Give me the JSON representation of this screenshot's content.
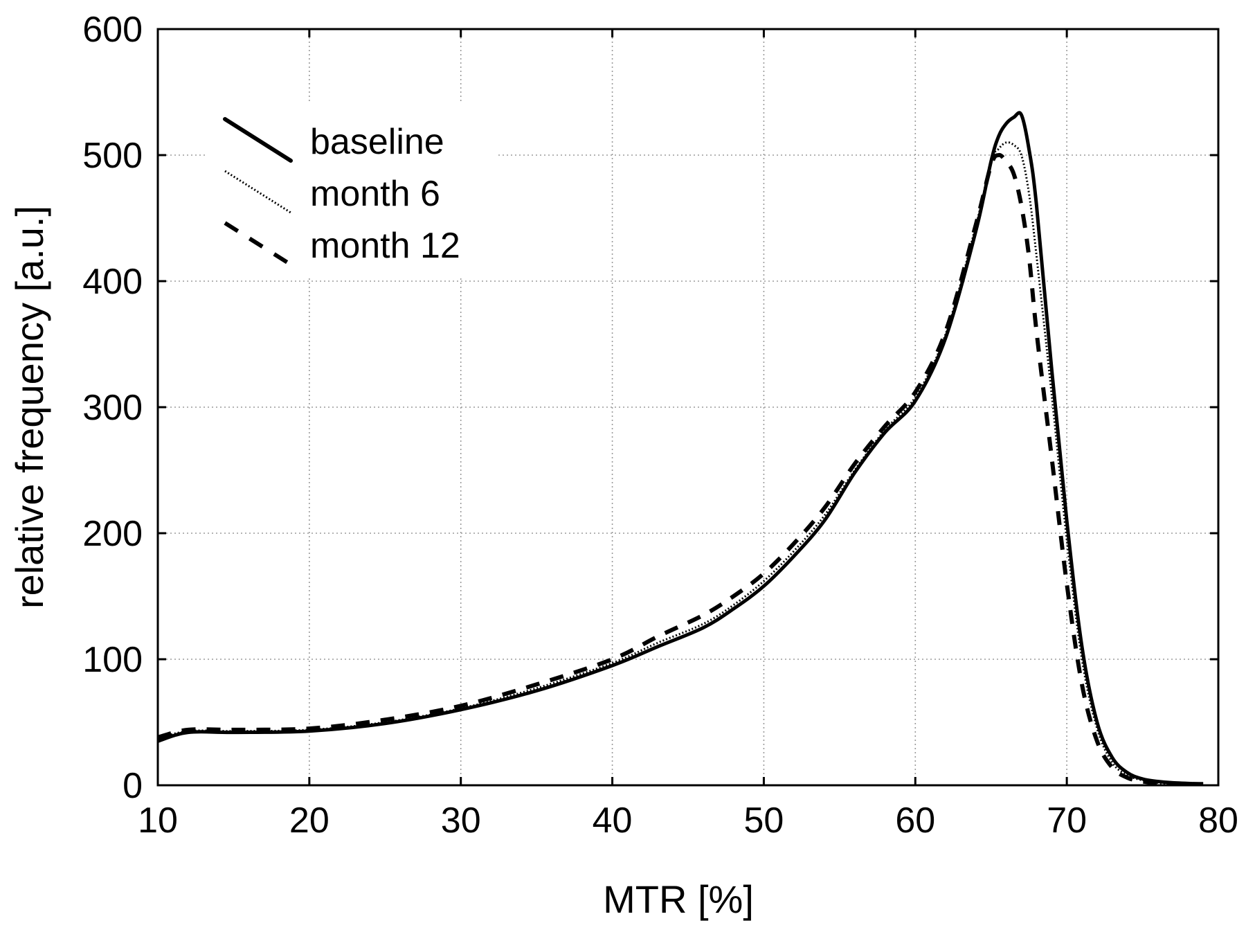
{
  "chart_data": {
    "type": "line",
    "title": "",
    "xlabel": "MTR [%]",
    "ylabel": "relative frequency [a.u.]",
    "xlim": [
      10,
      80
    ],
    "ylim": [
      0,
      600
    ],
    "xticks": [
      10,
      20,
      30,
      40,
      50,
      60,
      70,
      80
    ],
    "yticks": [
      0,
      100,
      200,
      300,
      400,
      500,
      600
    ],
    "xtick_labels": [
      "10",
      "20",
      "30",
      "40",
      "50",
      "60",
      "70",
      "80"
    ],
    "ytick_labels": [
      "0",
      "100",
      "200",
      "300",
      "400",
      "500",
      "600"
    ],
    "grid": true,
    "legend_position": "top-left",
    "series": [
      {
        "name": "baseline",
        "style": "solid",
        "x": [
          10,
          12,
          15,
          20,
          25,
          30,
          35,
          40,
          43,
          46,
          48,
          50,
          52,
          54,
          56,
          58,
          60,
          62,
          64,
          65,
          65.5,
          66,
          66.5,
          67,
          67.5,
          68,
          69,
          70,
          71,
          72,
          73,
          74,
          75,
          76,
          77,
          79
        ],
        "y": [
          35,
          42,
          42,
          43,
          49,
          60,
          75,
          95,
          110,
          125,
          140,
          158,
          182,
          210,
          248,
          280,
          305,
          355,
          440,
          495,
          515,
          525,
          530,
          532,
          505,
          460,
          330,
          210,
          110,
          50,
          22,
          10,
          5,
          3,
          2,
          1
        ]
      },
      {
        "name": "month 6",
        "style": "dotted",
        "x": [
          10,
          12,
          15,
          20,
          25,
          30,
          35,
          40,
          43,
          46,
          48,
          50,
          52,
          54,
          56,
          58,
          60,
          62,
          64,
          65,
          65.5,
          66,
          66.5,
          67,
          67.5,
          68,
          69,
          70,
          71,
          72,
          73,
          74,
          75,
          76,
          77,
          79
        ],
        "y": [
          37,
          43,
          43,
          44,
          50,
          61,
          77,
          97,
          113,
          128,
          143,
          162,
          186,
          214,
          250,
          282,
          308,
          358,
          444,
          495,
          505,
          510,
          508,
          500,
          470,
          420,
          310,
          195,
          100,
          45,
          18,
          8,
          4,
          2,
          1,
          1
        ]
      },
      {
        "name": "month 12",
        "style": "dashed",
        "x": [
          10,
          12,
          15,
          20,
          25,
          30,
          35,
          40,
          43,
          46,
          48,
          50,
          52,
          54,
          56,
          58,
          60,
          62,
          64,
          65,
          65.5,
          66,
          66.5,
          67,
          67.5,
          68,
          69,
          70,
          71,
          72,
          73,
          74,
          75,
          76,
          77,
          79
        ],
        "y": [
          38,
          44,
          44,
          45,
          52,
          63,
          80,
          100,
          118,
          135,
          150,
          168,
          192,
          220,
          255,
          285,
          312,
          360,
          445,
          492,
          500,
          495,
          485,
          460,
          420,
          360,
          260,
          160,
          80,
          35,
          14,
          6,
          3,
          2,
          1,
          1
        ]
      }
    ]
  }
}
